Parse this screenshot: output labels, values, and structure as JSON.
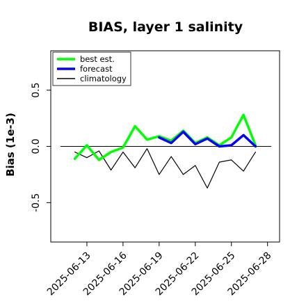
{
  "chart_data": {
    "type": "line",
    "title": "BIAS, layer 1 salinity",
    "xlabel": "",
    "ylabel": "Bias (1e-3)",
    "ylim": [
      -0.85,
      0.85
    ],
    "yticks": [
      -0.5,
      0.0,
      0.5
    ],
    "ytick_labels": [
      "-0.5",
      "0.0",
      "0.5"
    ],
    "x_range": [
      "2025-06-10",
      "2025-06-29"
    ],
    "xticks": [
      "2025-06-13",
      "2025-06-16",
      "2025-06-19",
      "2025-06-22",
      "2025-06-25",
      "2025-06-28"
    ],
    "highlighted_tick": "2025-06-19",
    "highlight_color": "#228b22",
    "zero_line": true,
    "grid": false,
    "legend_position": "top-left",
    "x": [
      "2025-06-12",
      "2025-06-13",
      "2025-06-14",
      "2025-06-15",
      "2025-06-16",
      "2025-06-17",
      "2025-06-18",
      "2025-06-19",
      "2025-06-20",
      "2025-06-21",
      "2025-06-22",
      "2025-06-23",
      "2025-06-24",
      "2025-06-25",
      "2025-06-26",
      "2025-06-27"
    ],
    "series": [
      {
        "name": "best est.",
        "color": "#00ff00",
        "width": 3.5,
        "values": [
          -0.11,
          0.01,
          -0.12,
          -0.05,
          -0.01,
          0.18,
          0.06,
          0.09,
          0.05,
          0.14,
          0.03,
          0.08,
          0.01,
          0.08,
          0.28,
          0.01
        ]
      },
      {
        "name": "forecast",
        "color": "#0000ff",
        "width": 3.5,
        "values": [
          null,
          null,
          null,
          null,
          null,
          null,
          null,
          0.08,
          0.03,
          0.13,
          0.02,
          0.07,
          0.0,
          0.01,
          0.1,
          0.0
        ]
      },
      {
        "name": "climatology",
        "color": "#000000",
        "width": 1.2,
        "values": [
          -0.05,
          -0.1,
          -0.04,
          -0.21,
          -0.05,
          -0.19,
          -0.02,
          -0.25,
          -0.09,
          -0.25,
          -0.17,
          -0.37,
          -0.14,
          -0.12,
          -0.22,
          -0.05
        ]
      }
    ]
  }
}
